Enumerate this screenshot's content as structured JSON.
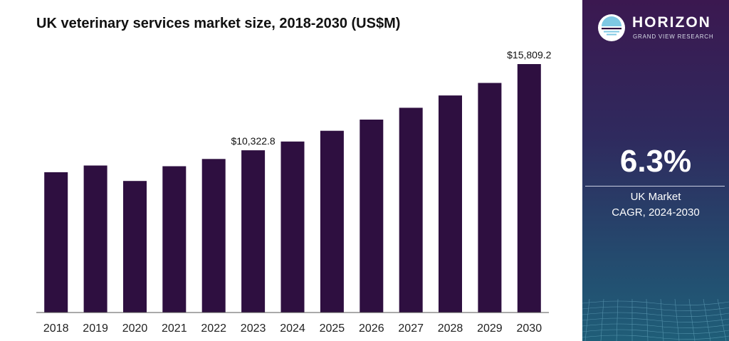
{
  "chart_data": {
    "type": "bar",
    "title": "UK veterinary services market size, 2018-2030 (US$M)",
    "categories": [
      "2018",
      "2019",
      "2020",
      "2021",
      "2022",
      "2023",
      "2024",
      "2025",
      "2026",
      "2027",
      "2028",
      "2029",
      "2030"
    ],
    "values": [
      8928,
      9352,
      8370,
      9310,
      9770,
      10322.8,
      10880,
      11565,
      12275,
      13030,
      13810,
      14610,
      15809.2
    ],
    "value_labels": {
      "5": "$10,322.8",
      "12": "$15,809.2"
    },
    "ylim": [
      0,
      16000
    ],
    "bar_color": "#2e0f40",
    "grid": false,
    "xlabel": "",
    "ylabel": ""
  },
  "sidebar": {
    "brand_name": "HORIZON",
    "brand_sub": "GRAND VIEW RESEARCH",
    "cagr_value": "6.3%",
    "cagr_line1": "UK Market",
    "cagr_line2": "CAGR, 2024-2030",
    "accent_color": "#7ec8e3"
  }
}
